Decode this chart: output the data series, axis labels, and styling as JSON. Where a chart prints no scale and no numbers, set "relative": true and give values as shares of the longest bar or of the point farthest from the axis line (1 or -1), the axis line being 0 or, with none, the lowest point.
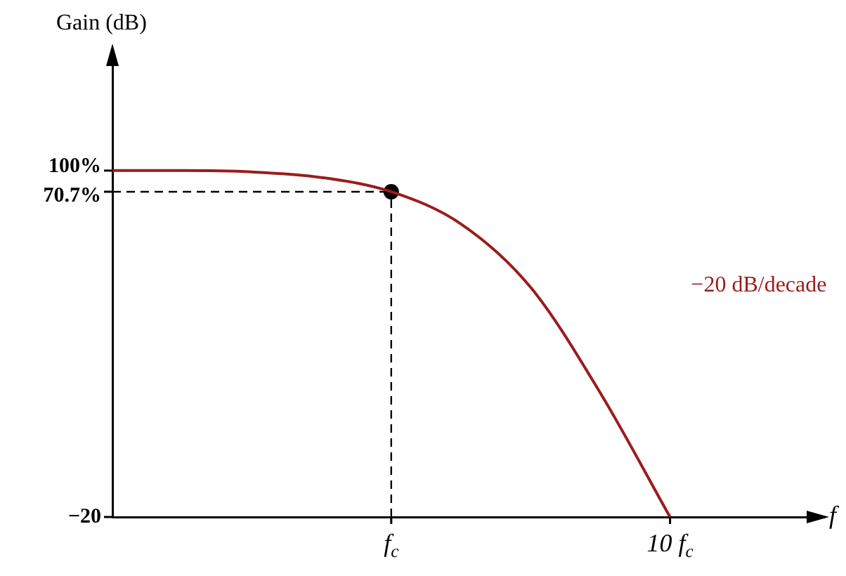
{
  "chart_data": {
    "type": "line",
    "relative": true,
    "xlabel": "f",
    "categories": [
      null,
      null,
      null,
      null,
      "f$_{c}$",
      null,
      null,
      null,
      "10 f$_{c}$",
      null,
      null
    ],
    "series": [
      {
        "color": "#9b1c1c",
        "values": [
          1,
          1,
          0.996,
          0.98,
          0.939,
          0.846,
          0.663,
          0.358,
          0,
          null,
          null
        ]
      },
      {
        "type": "scatter",
        "color": "#000000",
        "marker": "circle",
        "x": [
          "f$_{c}$"
        ],
        "values": [
          0.939
        ]
      }
    ],
    "ref_lines": [
      {
        "axis": "y",
        "value": 0.939,
        "color": "#000000",
        "line_style": "dashed"
      },
      {
        "axis": "x",
        "value": "f$_{c}$",
        "color": "#000000",
        "line_style": "dashed"
      }
    ],
    "annotations": [
      "100%",
      "70.7%",
      "−20",
      "−20 dB/decade",
      "Gain (dB)"
    ],
    "grid": false,
    "legend": false,
    "marker": "none"
  }
}
